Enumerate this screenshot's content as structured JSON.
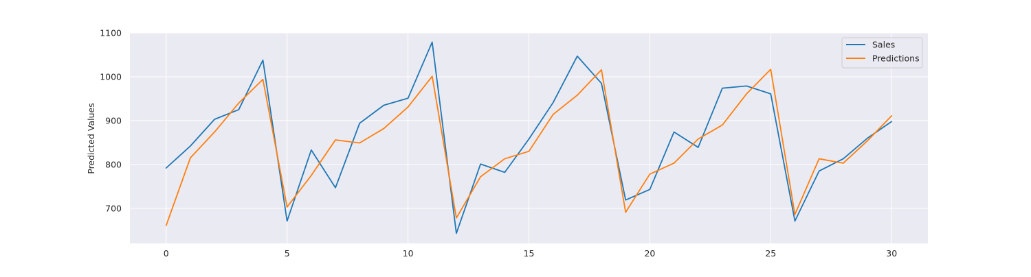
{
  "chart_data": {
    "type": "line",
    "title": "",
    "xlabel": "",
    "ylabel": "Predicted Values",
    "xlim": [
      -1.5,
      31.5
    ],
    "ylim": [
      620,
      1100
    ],
    "x_ticks": [
      0,
      5,
      10,
      15,
      20,
      25,
      30
    ],
    "y_ticks": [
      700,
      800,
      900,
      1000,
      1100
    ],
    "grid": true,
    "legend_position": "top-right",
    "x": [
      0,
      1,
      2,
      3,
      4,
      5,
      6,
      7,
      8,
      9,
      10,
      11,
      12,
      13,
      14,
      15,
      16,
      17,
      18,
      19,
      20,
      21,
      22,
      23,
      24,
      25,
      26,
      27,
      28,
      29,
      30
    ],
    "series": [
      {
        "name": "Sales",
        "color": "#1f77b4",
        "values": [
          792,
          842,
          903,
          925,
          1038,
          671,
          833,
          747,
          894,
          935,
          951,
          1079,
          643,
          801,
          782,
          858,
          941,
          1047,
          985,
          719,
          743,
          874,
          839,
          974,
          979,
          961,
          671,
          785,
          813,
          860,
          898
        ]
      },
      {
        "name": "Predictions",
        "color": "#ff7f0e",
        "values": [
          661,
          815,
          874,
          940,
          994,
          703,
          775,
          856,
          849,
          882,
          931,
          1001,
          678,
          772,
          813,
          830,
          914,
          958,
          1016,
          691,
          778,
          803,
          858,
          890,
          961,
          1017,
          686,
          813,
          803,
          854,
          911
        ]
      }
    ]
  }
}
